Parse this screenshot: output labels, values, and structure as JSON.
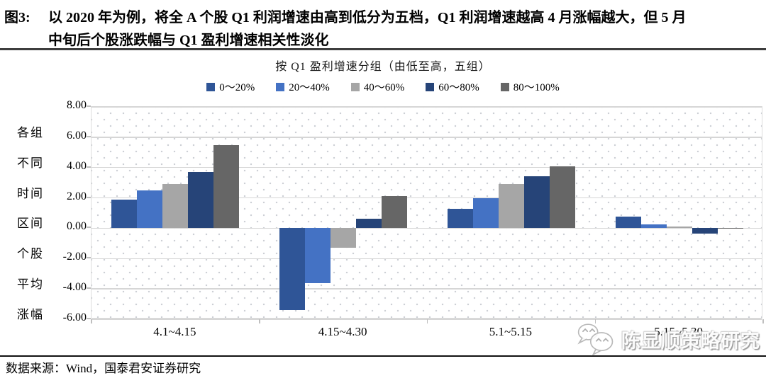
{
  "figure": {
    "label": "图3:",
    "title_line1": "以 2020 年为例，将全 A 个股 Q1 利润增速由高到低分为五档，Q1 利润增速越高 4 月涨幅越大，但 5 月",
    "title_line2": "中旬后个股涨跌幅与 Q1 盈利增速相关性淡化"
  },
  "chart_data": {
    "type": "bar",
    "title": "按 Q1 盈利增速分组（由低至高，五组）",
    "categories": [
      "4.1~4.15",
      "4.15~4.30",
      "5.1~5.15",
      "5.15~5.30"
    ],
    "series": [
      {
        "name": "0～20%",
        "color": "#2F5597",
        "values": [
          1.9,
          -5.4,
          1.3,
          0.75
        ]
      },
      {
        "name": "20～40%",
        "color": "#4472C4",
        "values": [
          2.5,
          -3.6,
          2.0,
          0.25
        ]
      },
      {
        "name": "40～60%",
        "color": "#A6A6A6",
        "values": [
          2.9,
          -1.3,
          2.9,
          0.1
        ]
      },
      {
        "name": "60～80%",
        "color": "#264478",
        "values": [
          3.7,
          0.65,
          3.45,
          -0.35
        ]
      },
      {
        "name": "80～100%",
        "color": "#666666",
        "values": [
          5.5,
          2.1,
          4.1,
          -0.05
        ]
      }
    ],
    "ylabel_lines": [
      "各组",
      "不同",
      "时间",
      "区间",
      "个股",
      "平均",
      "涨幅"
    ],
    "ylim": [
      -6,
      8
    ],
    "ytick_step": 2,
    "yticks": [
      "8.00",
      "6.00",
      "4.00",
      "2.00",
      "0.00",
      "-2.00",
      "-4.00",
      "-6.00"
    ],
    "grid": true,
    "legend_position": "top"
  },
  "footer": {
    "source": "数据来源：Wind，国泰君安证券研究"
  },
  "watermark": {
    "icon": "wechat-logo-icon",
    "text": "陈显顺策略研究"
  }
}
